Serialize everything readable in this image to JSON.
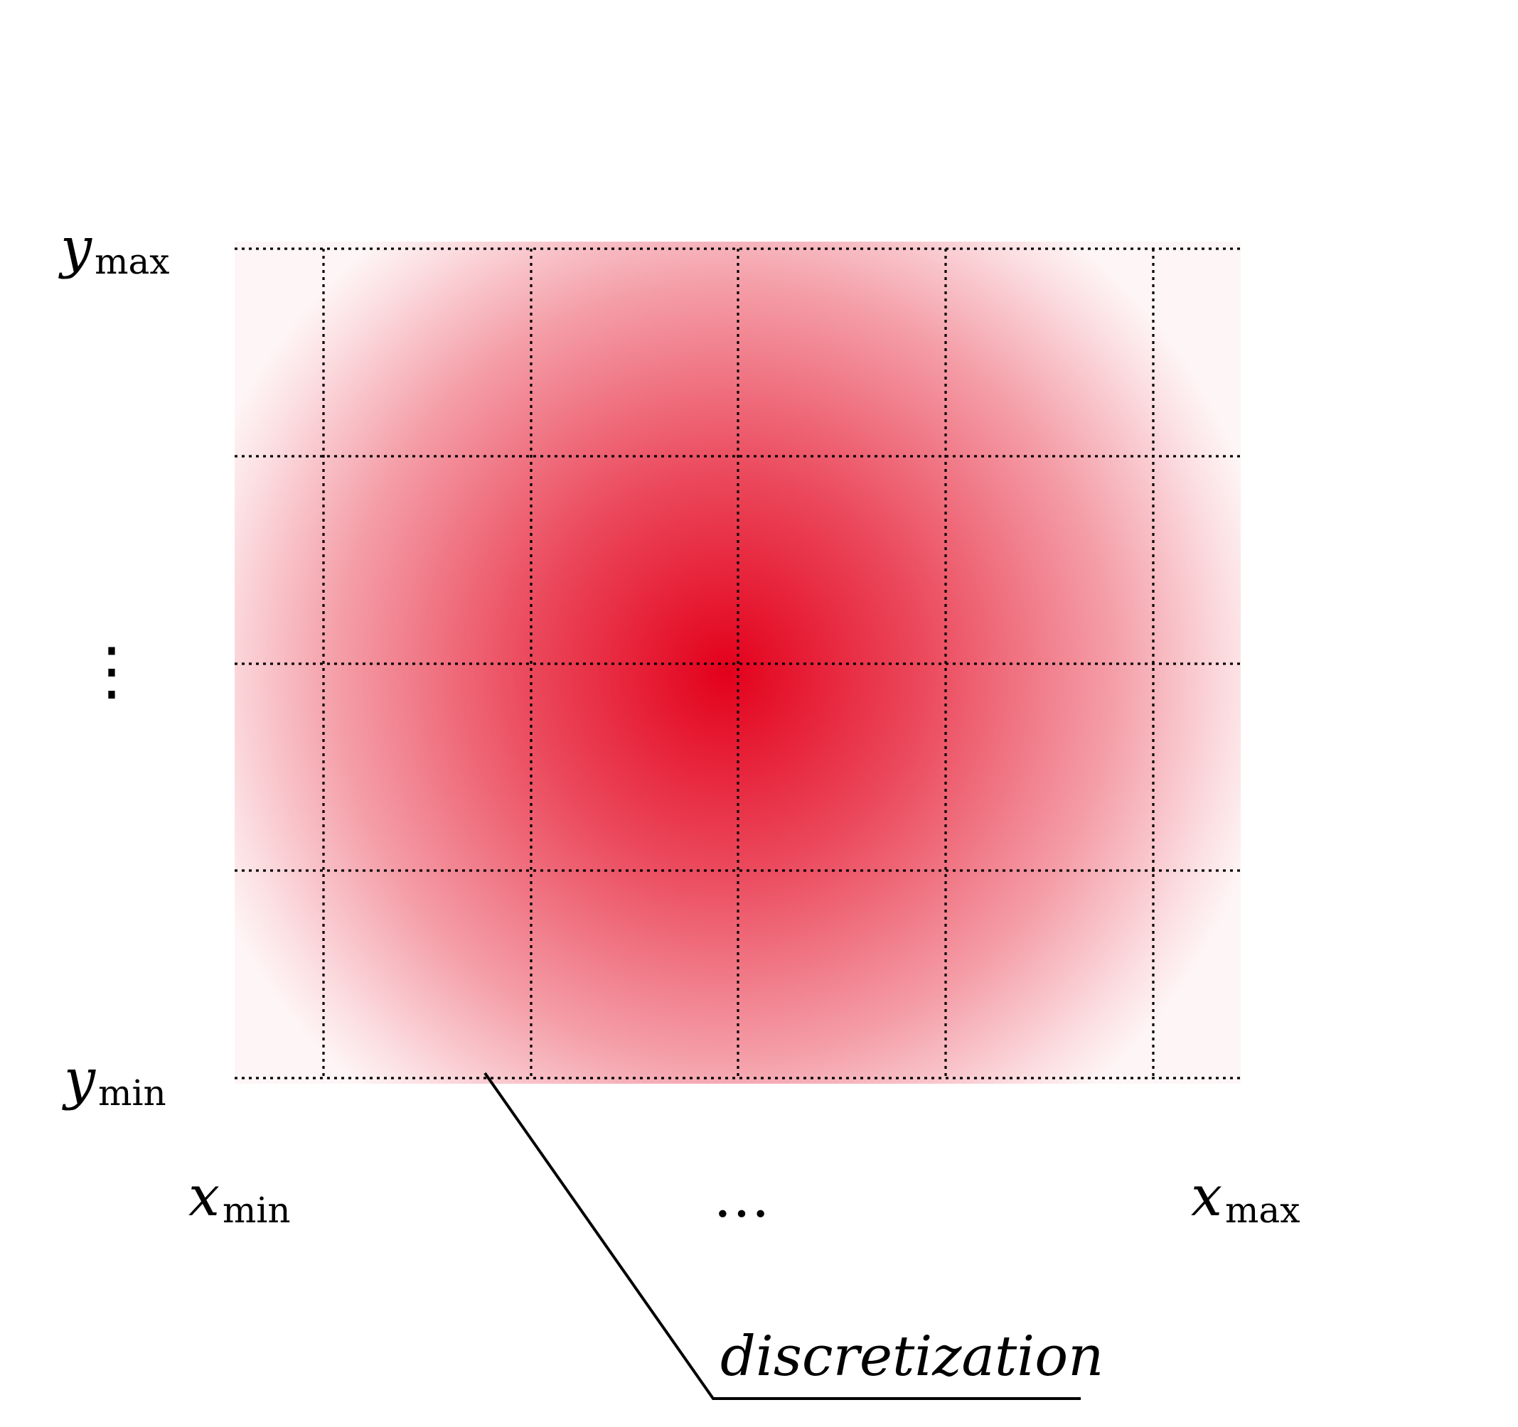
{
  "labels": {
    "y_max": {
      "var": "y",
      "sub": "max"
    },
    "y_min": {
      "var": "y",
      "sub": "min"
    },
    "x_min": {
      "var": "x",
      "sub": "min"
    },
    "x_max": {
      "var": "x",
      "sub": "max"
    },
    "vertical_ellipsis": "⋮",
    "horizontal_ellipsis": "…"
  },
  "callout": {
    "text": "discretization"
  },
  "colors": {
    "field_center": "#e3001b",
    "field_edge": "#ffffff",
    "grid_line": "#000000",
    "callout_line": "#000000"
  },
  "grid": {
    "style": "dotted",
    "columns": 6,
    "rows": 4
  }
}
